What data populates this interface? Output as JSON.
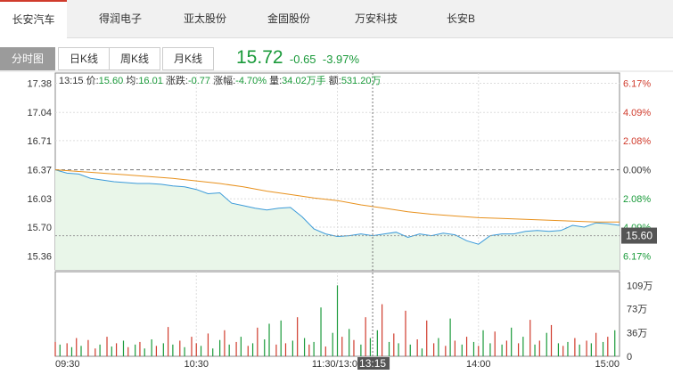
{
  "stock_tabs": [
    {
      "label": "长安汽车",
      "active": true
    },
    {
      "label": "得润电子",
      "active": false
    },
    {
      "label": "亚太股份",
      "active": false
    },
    {
      "label": "金固股份",
      "active": false
    },
    {
      "label": "万安科技",
      "active": false
    },
    {
      "label": "长安B",
      "active": false
    }
  ],
  "view_tabs": [
    {
      "label": "分时图",
      "active": true
    },
    {
      "label": "日K线",
      "active": false
    },
    {
      "label": "周K线",
      "active": false
    },
    {
      "label": "月K线",
      "active": false
    }
  ],
  "quote": {
    "price": "15.72",
    "change": "-0.65",
    "change_pct": "-3.97%"
  },
  "colors": {
    "up": "#d03b2c",
    "down": "#1a9a3a",
    "price_line": "#3a9ad9",
    "avg_line": "#e8911d",
    "area": "#e9f6e9"
  },
  "chart_data": {
    "type": "line",
    "info_bar": {
      "time": "13:15",
      "price_label": "价:",
      "price": "15.60",
      "avg_label": "均:",
      "avg": "16.01",
      "change_label": "涨跌:",
      "change": "-0.77",
      "pct_label": "涨幅:",
      "pct": "-4.70%",
      "volume_label": "量:",
      "volume": "34.02万手",
      "amount_label": "额:",
      "amount": "531.20万"
    },
    "y_ticks_left": [
      "17.38",
      "17.04",
      "16.71",
      "16.37",
      "16.03",
      "15.70",
      "15.36"
    ],
    "y_ticks_right": [
      "6.17%",
      "4.09%",
      "2.08%",
      "0.00%",
      "2.08%",
      "4.09%",
      "6.17%"
    ],
    "y_range": [
      15.2,
      17.5
    ],
    "prev_close": 16.37,
    "x_labels": [
      "09:30",
      "10:30",
      "11:30/13:00",
      "14:00",
      "15:00"
    ],
    "crosshair_time": "13:15",
    "crosshair_price": "15.60",
    "vol_ticks": [
      "109万",
      "73万",
      "36万",
      "0"
    ],
    "vol_range": [
      0,
      130
    ],
    "series": [
      {
        "name": "价",
        "x": [
          0,
          5,
          10,
          15,
          20,
          25,
          30,
          35,
          40,
          45,
          50,
          55,
          60,
          65,
          70,
          75,
          80,
          85,
          90,
          95,
          100,
          105,
          110,
          115,
          120,
          125,
          130,
          135,
          140,
          145,
          150,
          155,
          160,
          165,
          170,
          175,
          180,
          185,
          190,
          195,
          200,
          205,
          210,
          215,
          220,
          225,
          230,
          235,
          240
        ],
        "values": [
          16.37,
          16.33,
          16.32,
          16.27,
          16.25,
          16.23,
          16.22,
          16.21,
          16.21,
          16.2,
          16.18,
          16.17,
          16.14,
          16.09,
          16.1,
          15.98,
          15.95,
          15.92,
          15.9,
          15.92,
          15.93,
          15.82,
          15.68,
          15.62,
          15.59,
          15.6,
          15.62,
          15.6,
          15.62,
          15.64,
          15.58,
          15.62,
          15.6,
          15.63,
          15.61,
          15.54,
          15.5,
          15.6,
          15.62,
          15.62,
          15.65,
          15.66,
          15.65,
          15.66,
          15.72,
          15.7,
          15.75,
          15.74,
          15.72
        ]
      },
      {
        "name": "均",
        "x": [
          0,
          10,
          20,
          30,
          40,
          50,
          60,
          70,
          80,
          90,
          100,
          110,
          120,
          130,
          140,
          150,
          160,
          170,
          180,
          190,
          200,
          210,
          220,
          230,
          240
        ],
        "values": [
          16.37,
          16.35,
          16.33,
          16.31,
          16.29,
          16.27,
          16.24,
          16.21,
          16.17,
          16.12,
          16.08,
          16.04,
          16.01,
          15.96,
          15.92,
          15.88,
          15.85,
          15.83,
          15.81,
          15.8,
          15.79,
          15.78,
          15.77,
          15.76,
          15.76
        ]
      }
    ],
    "volume": {
      "x": [
        0,
        2,
        5,
        7,
        9,
        11,
        14,
        17,
        19,
        22,
        24,
        26,
        29,
        31,
        34,
        36,
        38,
        41,
        43,
        46,
        48,
        50,
        53,
        55,
        58,
        60,
        62,
        65,
        67,
        70,
        72,
        74,
        77,
        79,
        82,
        84,
        86,
        89,
        91,
        94,
        96,
        98,
        101,
        103,
        106,
        108,
        110,
        113,
        115,
        118,
        120,
        122,
        125,
        127,
        130,
        132,
        134,
        137,
        139,
        142,
        144,
        146,
        149,
        151,
        154,
        156,
        158,
        161,
        163,
        166,
        168,
        170,
        173,
        175,
        178,
        180,
        182,
        185,
        187,
        190,
        192,
        194,
        197,
        199,
        202,
        204,
        206,
        209,
        211,
        214,
        216,
        218,
        221,
        223,
        226,
        228,
        230,
        233,
        235,
        238
      ],
      "values": [
        22,
        18,
        20,
        14,
        28,
        16,
        25,
        12,
        18,
        30,
        15,
        20,
        24,
        14,
        18,
        22,
        12,
        26,
        16,
        20,
        45,
        18,
        24,
        14,
        30,
        20,
        16,
        35,
        12,
        25,
        40,
        18,
        22,
        30,
        16,
        20,
        44,
        26,
        50,
        18,
        55,
        20,
        24,
        60,
        28,
        18,
        22,
        75,
        15,
        36,
        109,
        30,
        42,
        25,
        18,
        60,
        28,
        40,
        80,
        22,
        35,
        20,
        70,
        18,
        26,
        12,
        55,
        20,
        28,
        16,
        58,
        24,
        18,
        30,
        22,
        16,
        40,
        20,
        38,
        18,
        24,
        44,
        20,
        30,
        56,
        18,
        24,
        36,
        48,
        20,
        16,
        22,
        28,
        18,
        24,
        20,
        36,
        22,
        30,
        40
      ],
      "colors": [
        "r",
        "g",
        "r",
        "g",
        "r",
        "g",
        "r",
        "r",
        "g",
        "r",
        "g",
        "r",
        "g",
        "r",
        "g",
        "r",
        "g",
        "g",
        "r",
        "g",
        "r",
        "g",
        "r",
        "g",
        "r",
        "r",
        "g",
        "r",
        "g",
        "g",
        "r",
        "g",
        "r",
        "g",
        "r",
        "g",
        "r",
        "g",
        "g",
        "r",
        "g",
        "r",
        "g",
        "r",
        "g",
        "r",
        "g",
        "g",
        "r",
        "g",
        "g",
        "r",
        "g",
        "r",
        "g",
        "r",
        "g",
        "g",
        "r",
        "g",
        "r",
        "g",
        "r",
        "g",
        "r",
        "g",
        "r",
        "r",
        "g",
        "r",
        "g",
        "r",
        "g",
        "r",
        "g",
        "r",
        "g",
        "g",
        "r",
        "g",
        "r",
        "g",
        "r",
        "g",
        "r",
        "g",
        "r",
        "g",
        "r",
        "g",
        "r",
        "g",
        "r",
        "g",
        "r",
        "g",
        "r",
        "g",
        "r",
        "g"
      ]
    }
  }
}
